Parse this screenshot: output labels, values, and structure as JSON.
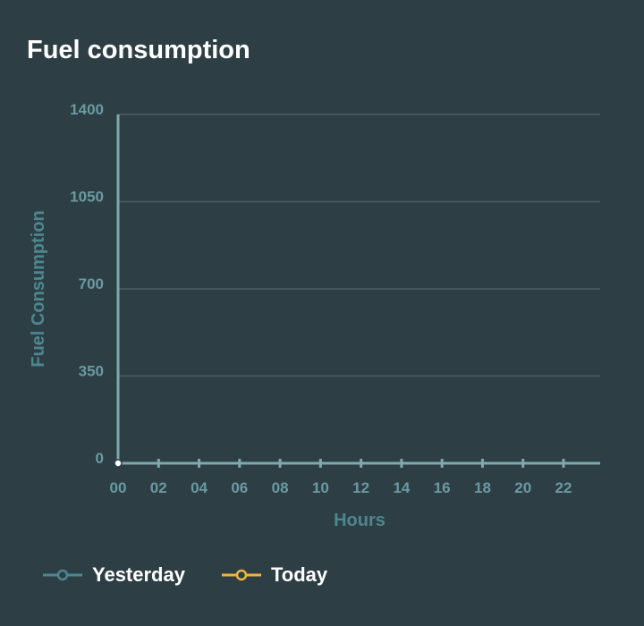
{
  "chart_data": {
    "type": "line",
    "title": "Fuel consumption",
    "xlabel": "Hours",
    "ylabel": "Fuel Consumption",
    "x_ticks": [
      "00",
      "02",
      "04",
      "06",
      "08",
      "10",
      "12",
      "14",
      "16",
      "18",
      "20",
      "22"
    ],
    "y_ticks": [
      "0",
      "350",
      "700",
      "1050",
      "1400"
    ],
    "y_tick_values": [
      0,
      350,
      700,
      1050,
      1400
    ],
    "ylim": [
      0,
      1400
    ],
    "xlim": [
      0,
      24
    ],
    "grid": true,
    "series": [
      {
        "name": "Yesterday",
        "color": "#4d8790",
        "x": [
          0
        ],
        "values": [
          0
        ]
      },
      {
        "name": "Today",
        "color": "#f2b340",
        "x": [],
        "values": []
      }
    ],
    "legend_position": "bottom-left"
  }
}
